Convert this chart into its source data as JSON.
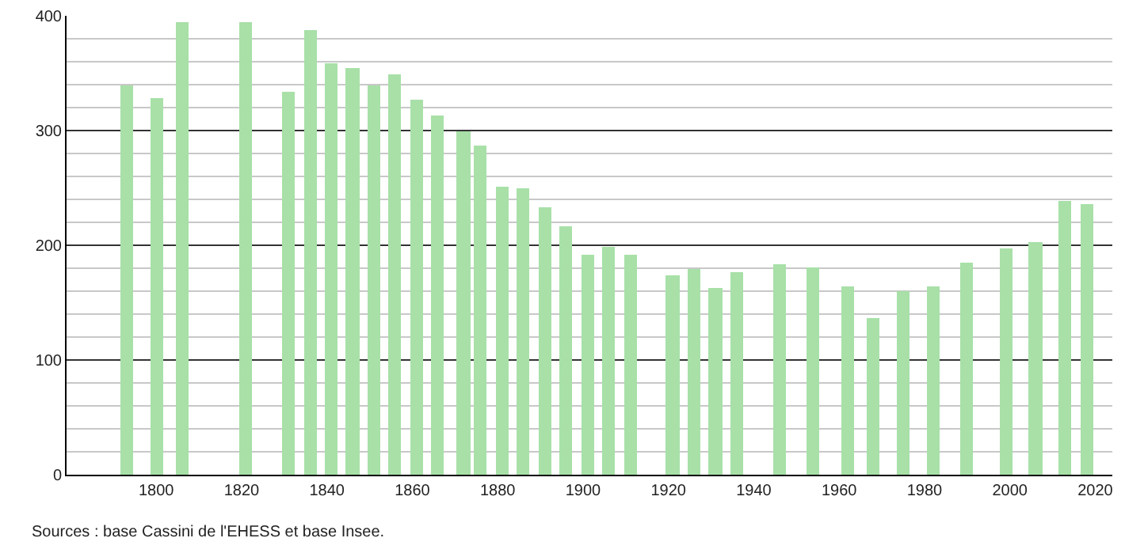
{
  "chart_data": {
    "type": "bar",
    "x": [
      1793,
      1800,
      1806,
      1821,
      1831,
      1836,
      1841,
      1846,
      1851,
      1856,
      1861,
      1866,
      1872,
      1876,
      1881,
      1886,
      1891,
      1896,
      1901,
      1906,
      1911,
      1921,
      1926,
      1931,
      1936,
      1946,
      1954,
      1962,
      1968,
      1975,
      1982,
      1990,
      1999,
      2006,
      2013,
      2018
    ],
    "values": [
      339,
      328,
      395,
      395,
      334,
      388,
      359,
      355,
      339,
      349,
      327,
      313,
      299,
      287,
      251,
      250,
      233,
      216,
      192,
      199,
      192,
      174,
      179,
      163,
      176,
      183,
      181,
      164,
      137,
      160,
      164,
      185,
      197,
      203,
      238,
      236
    ],
    "color": "#a8e0a8",
    "xlim": [
      1779,
      2024
    ],
    "xticks": [
      1800,
      1820,
      1840,
      1860,
      1880,
      1900,
      1920,
      1940,
      1960,
      1980,
      2000,
      2020
    ],
    "ylim": [
      0,
      400
    ],
    "yticks": [
      0,
      {
        "value": 20,
        "label": null
      },
      {
        "value": 40,
        "label": null
      },
      {
        "value": 60,
        "label": null
      },
      {
        "value": 80,
        "label": null
      },
      100,
      {
        "value": 120,
        "label": null
      },
      {
        "value": 140,
        "label": null
      },
      {
        "value": 160,
        "label": null
      },
      {
        "value": 180,
        "label": null
      },
      200,
      {
        "value": 220,
        "label": null
      },
      {
        "value": 240,
        "label": null
      },
      {
        "value": 260,
        "label": null
      },
      {
        "value": 280,
        "label": null
      },
      300,
      {
        "value": 320,
        "label": null
      },
      {
        "value": 340,
        "label": null
      },
      {
        "value": 360,
        "label": null
      },
      {
        "value": 380,
        "label": null
      },
      400
    ],
    "grid": "y",
    "annotations": [
      "Sources : base Cassini de l'EHESS et base Insee."
    ]
  }
}
